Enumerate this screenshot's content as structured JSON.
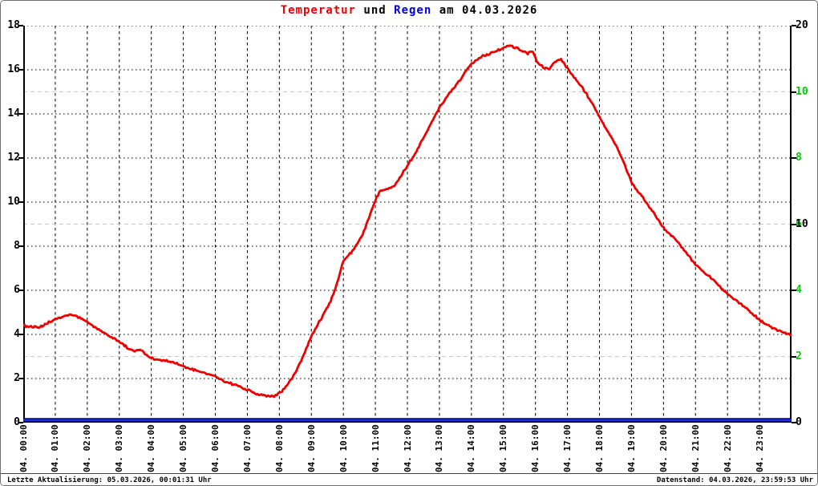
{
  "title": {
    "parts": [
      {
        "text": "Temperatur",
        "color": "#ee0000"
      },
      {
        "text": " und ",
        "color": "#000000"
      },
      {
        "text": "Regen",
        "color": "#0000dd"
      },
      {
        "text": " am 04.03.2026",
        "color": "#000000"
      }
    ]
  },
  "footer": {
    "left": "Letzte Aktualisierung: 05.03.2026, 00:01:31 Uhr",
    "right": "Datenstand: 04.03.2026, 23:59:53 Uhr"
  },
  "colors": {
    "temp_line": "#ee0000",
    "rain_line_core": "#1a2fd0",
    "rain_line_edge": "#000080",
    "right_axis_green": "#00cc00",
    "grid_black": "#000000",
    "grid_gray": "#c8c8c8",
    "frame": "#000000"
  },
  "chart_data": {
    "type": "line",
    "title": "Temperatur und Regen am 04.03.2026",
    "grid": "hourly vertical dashed; horizontal dotted at even left values; light-gray dashed at left 3/9/15",
    "legend_position": "none",
    "x_axis": {
      "unit": "hour",
      "range": [
        0,
        24
      ],
      "gridline_every_hours": 1,
      "labels": [
        "04. 00:00",
        "04. 01:00",
        "04. 02:00",
        "04. 03:00",
        "04. 04:00",
        "04. 05:00",
        "04. 06:00",
        "04. 07:00",
        "04. 08:00",
        "04. 09:00",
        "04. 10:00",
        "04. 11:00",
        "04. 12:00",
        "04. 13:00",
        "04. 14:00",
        "04. 15:00",
        "04. 16:00",
        "04. 17:00",
        "04. 18:00",
        "04. 19:00",
        "04. 20:00",
        "04. 21:00",
        "04. 22:00",
        "04. 23:00"
      ],
      "label_hours": [
        0,
        1,
        2,
        3,
        4,
        5,
        6,
        7,
        8,
        9,
        10,
        11,
        12,
        13,
        14,
        15,
        16,
        17,
        18,
        19,
        20,
        21,
        22,
        23
      ]
    },
    "y_axis_left": {
      "range": [
        0,
        18
      ],
      "tick_labels": [
        0,
        2,
        4,
        6,
        8,
        10,
        12,
        14,
        16,
        18
      ],
      "grid_values": [
        2,
        4,
        6,
        8,
        10,
        12,
        14,
        16,
        18
      ],
      "gray_grid_values": [
        3,
        9,
        15
      ],
      "color": "#000000"
    },
    "y_axis_right_green": {
      "range": [
        0,
        12
      ],
      "tick_labels": [
        2,
        4,
        6,
        8,
        10
      ],
      "color": "#00cc00"
    },
    "y_axis_right_black": {
      "range": [
        0,
        20
      ],
      "tick_labels": [
        0,
        10,
        20
      ],
      "color": "#000000"
    },
    "series": [
      {
        "name": "Temperatur",
        "axis": "left",
        "color": "#ee0000",
        "points": [
          [
            0,
            4.4
          ],
          [
            0.25,
            4.35
          ],
          [
            0.5,
            4.3
          ],
          [
            0.75,
            4.5
          ],
          [
            1,
            4.7
          ],
          [
            1.3,
            4.82
          ],
          [
            1.55,
            4.9
          ],
          [
            1.8,
            4.72
          ],
          [
            2,
            4.55
          ],
          [
            2.3,
            4.28
          ],
          [
            2.6,
            4.0
          ],
          [
            3,
            3.68
          ],
          [
            3.3,
            3.35
          ],
          [
            3.5,
            3.22
          ],
          [
            3.65,
            3.35
          ],
          [
            3.85,
            3.05
          ],
          [
            4,
            2.92
          ],
          [
            4.3,
            2.84
          ],
          [
            4.6,
            2.76
          ],
          [
            5,
            2.55
          ],
          [
            5.3,
            2.4
          ],
          [
            5.6,
            2.28
          ],
          [
            6,
            2.1
          ],
          [
            6.3,
            1.86
          ],
          [
            6.6,
            1.72
          ],
          [
            7,
            1.5
          ],
          [
            7.3,
            1.3
          ],
          [
            7.6,
            1.2
          ],
          [
            7.9,
            1.22
          ],
          [
            8.1,
            1.45
          ],
          [
            8.4,
            2.0
          ],
          [
            8.7,
            2.85
          ],
          [
            9,
            3.95
          ],
          [
            9.3,
            4.7
          ],
          [
            9.6,
            5.5
          ],
          [
            9.8,
            6.3
          ],
          [
            10,
            7.35
          ],
          [
            10.3,
            7.8
          ],
          [
            10.6,
            8.5
          ],
          [
            10.8,
            9.3
          ],
          [
            11,
            10.1
          ],
          [
            11.15,
            10.55
          ],
          [
            11.4,
            10.62
          ],
          [
            11.6,
            10.75
          ],
          [
            11.8,
            11.2
          ],
          [
            12,
            11.65
          ],
          [
            12.3,
            12.35
          ],
          [
            12.6,
            13.2
          ],
          [
            13,
            14.3
          ],
          [
            13.3,
            14.9
          ],
          [
            13.6,
            15.45
          ],
          [
            14,
            16.3
          ],
          [
            14.3,
            16.6
          ],
          [
            14.6,
            16.75
          ],
          [
            15,
            17.0
          ],
          [
            15.2,
            17.1
          ],
          [
            15.4,
            17.0
          ],
          [
            15.6,
            16.85
          ],
          [
            15.75,
            16.75
          ],
          [
            15.9,
            16.85
          ],
          [
            16.05,
            16.35
          ],
          [
            16.25,
            16.1
          ],
          [
            16.45,
            16.05
          ],
          [
            16.65,
            16.4
          ],
          [
            16.8,
            16.45
          ],
          [
            17,
            16.05
          ],
          [
            17.3,
            15.5
          ],
          [
            17.6,
            14.9
          ],
          [
            18,
            13.85
          ],
          [
            18.3,
            13.1
          ],
          [
            18.6,
            12.35
          ],
          [
            19,
            10.9
          ],
          [
            19.5,
            9.9
          ],
          [
            20,
            8.85
          ],
          [
            20.5,
            8.1
          ],
          [
            21,
            7.15
          ],
          [
            21.5,
            6.55
          ],
          [
            22,
            5.85
          ],
          [
            22.5,
            5.28
          ],
          [
            23,
            4.65
          ],
          [
            23.5,
            4.22
          ],
          [
            24,
            3.95
          ]
        ]
      },
      {
        "name": "Regen",
        "axis": "right_green",
        "color": "#1a2fd0",
        "points": [
          [
            0,
            0
          ],
          [
            24,
            0
          ]
        ]
      }
    ]
  }
}
